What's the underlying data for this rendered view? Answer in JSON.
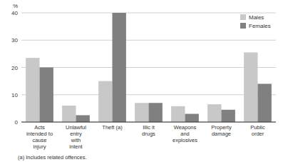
{
  "chart_data": {
    "type": "bar",
    "categories": [
      "Acts\nintended to\ncause\ninjury",
      "Unlawful\nentry\nwith\nintent",
      "Theft (a)",
      "Illic it\ndrugs",
      "Weapons\nand\nexplosives",
      "Property\ndamage",
      "Public\norder"
    ],
    "series": [
      {
        "name": "Males",
        "color": "#c8c8c8",
        "values": [
          23.5,
          6.0,
          15.0,
          7.0,
          5.8,
          6.5,
          25.5
        ]
      },
      {
        "name": "Females",
        "color": "#808080",
        "values": [
          20.0,
          2.5,
          40.0,
          7.0,
          3.0,
          4.5,
          14.0
        ]
      }
    ],
    "ylabel": "%",
    "ylim": [
      0,
      40
    ],
    "yticks": [
      0,
      10,
      20,
      30,
      40
    ],
    "grid": true,
    "legend": "upper right",
    "annotations": [
      "(a) Includes related offences."
    ]
  }
}
